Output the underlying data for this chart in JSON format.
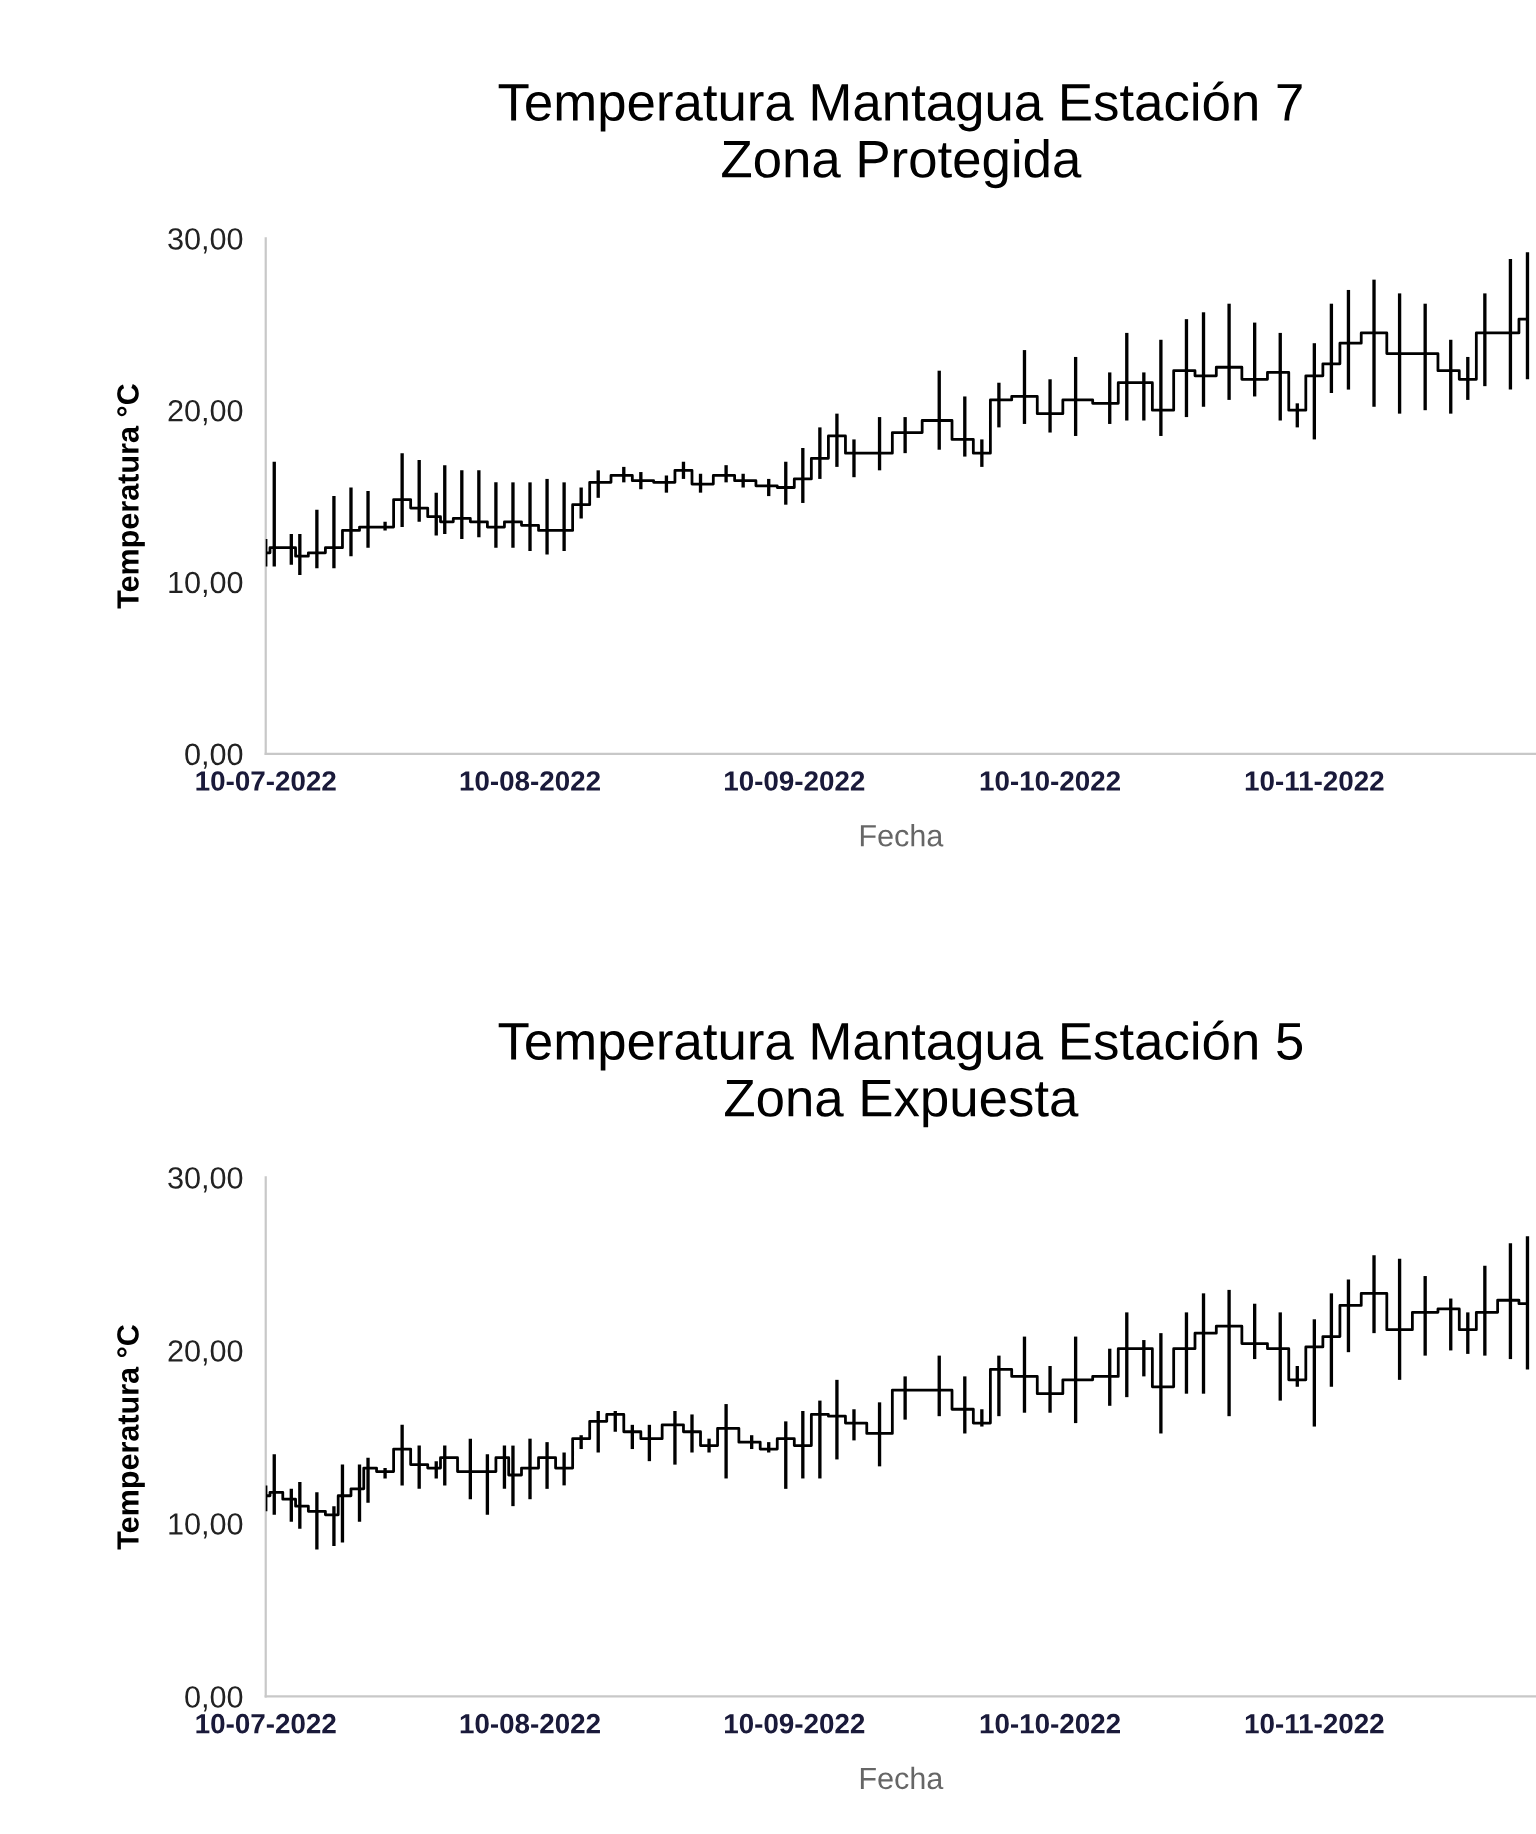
{
  "chart_data": [
    {
      "type": "step",
      "title": "Temperatura Mantagua Estación 7\nZona Protegida",
      "xlabel": "Fecha",
      "ylabel": "Temperatura °C",
      "color": "#000000",
      "x": [
        "2022-07-10",
        "2022-07-11",
        "2022-07-13",
        "2022-07-14",
        "2022-07-16",
        "2022-07-18",
        "2022-07-20",
        "2022-07-22",
        "2022-07-24",
        "2022-07-26",
        "2022-07-28",
        "2022-07-30",
        "2022-07-31",
        "2022-08-02",
        "2022-08-04",
        "2022-08-06",
        "2022-08-08",
        "2022-08-10",
        "2022-08-12",
        "2022-08-14",
        "2022-08-16",
        "2022-08-18",
        "2022-08-21",
        "2022-08-23",
        "2022-08-26",
        "2022-08-28",
        "2022-08-30",
        "2022-09-02",
        "2022-09-04",
        "2022-09-07",
        "2022-09-09",
        "2022-09-11",
        "2022-09-13",
        "2022-09-15",
        "2022-09-17",
        "2022-09-20",
        "2022-09-23",
        "2022-09-27",
        "2022-09-30",
        "2022-10-02",
        "2022-10-04",
        "2022-10-07",
        "2022-10-10",
        "2022-10-13",
        "2022-10-17",
        "2022-10-19",
        "2022-10-21",
        "2022-10-23",
        "2022-10-26",
        "2022-10-28",
        "2022-10-31",
        "2022-11-03",
        "2022-11-06",
        "2022-11-08",
        "2022-11-10",
        "2022-11-12",
        "2022-11-14",
        "2022-11-17",
        "2022-11-20",
        "2022-11-23",
        "2022-11-26",
        "2022-11-28",
        "2022-11-30",
        "2022-12-03",
        "2022-12-05"
      ],
      "values": [
        11.7,
        12,
        12,
        11.5,
        11.7,
        12,
        13,
        13.2,
        13.2,
        14.8,
        14.3,
        13.8,
        13.5,
        13.7,
        13.5,
        13.2,
        13.5,
        13.3,
        13,
        13,
        14.5,
        15.8,
        16.2,
        15.9,
        15.8,
        16.5,
        15.7,
        16.2,
        15.9,
        15.6,
        15.5,
        16,
        17.2,
        18.5,
        17.5,
        17.5,
        18.7,
        19.4,
        18.3,
        17.5,
        20.6,
        20.8,
        19.8,
        20.6,
        20.4,
        21.6,
        21.6,
        20,
        22.3,
        22,
        22.5,
        21.8,
        22.2,
        20,
        22,
        22.7,
        23.9,
        24.5,
        23.3,
        23.3,
        22.3,
        21.8,
        24.5,
        24.5,
        25.3
      ],
      "errors": [
        [
          10.9,
          12.5
        ],
        [
          10.9,
          17
        ],
        [
          11,
          12.8
        ],
        [
          10.4,
          12.8
        ],
        [
          10.8,
          14.2
        ],
        [
          10.8,
          15
        ],
        [
          11.5,
          15.5
        ],
        [
          12,
          15.3
        ],
        [
          13,
          13.5
        ],
        [
          13.2,
          17.5
        ],
        [
          13.5,
          17.1
        ],
        [
          12.7,
          15.2
        ],
        [
          12.8,
          16.8
        ],
        [
          12.5,
          16.5
        ],
        [
          12.6,
          16.5
        ],
        [
          12,
          15.8
        ],
        [
          12,
          15.8
        ],
        [
          11.8,
          15.8
        ],
        [
          11.6,
          16
        ],
        [
          11.8,
          15.8
        ],
        [
          13.7,
          15.5
        ],
        [
          14.9,
          16.5
        ],
        [
          15.8,
          16.7
        ],
        [
          15.4,
          16.4
        ],
        [
          15.2,
          16.2
        ],
        [
          16,
          17
        ],
        [
          15.2,
          16.3
        ],
        [
          15.8,
          16.8
        ],
        [
          15.5,
          16.3
        ],
        [
          15,
          16
        ],
        [
          14.5,
          17
        ],
        [
          14.6,
          17.8
        ],
        [
          16,
          19
        ],
        [
          16.7,
          19.8
        ],
        [
          16.1,
          18.3
        ],
        [
          16.5,
          19.6
        ],
        [
          17.5,
          19.6
        ],
        [
          17.7,
          22.3
        ],
        [
          17.3,
          20.8
        ],
        [
          16.7,
          18.3
        ],
        [
          19,
          21.6
        ],
        [
          19.2,
          23.5
        ],
        [
          18.7,
          21.8
        ],
        [
          18.5,
          23.1
        ],
        [
          19.2,
          22.2
        ],
        [
          19.4,
          24.5
        ],
        [
          19.4,
          22.2
        ],
        [
          18.5,
          24.1
        ],
        [
          19.6,
          25.3
        ],
        [
          20.2,
          25.7
        ],
        [
          20.6,
          26.2
        ],
        [
          20.8,
          25.1
        ],
        [
          19.4,
          24.5
        ],
        [
          19,
          20.4
        ],
        [
          18.3,
          23.9
        ],
        [
          21,
          26.2
        ],
        [
          21.2,
          27
        ],
        [
          20.2,
          27.6
        ],
        [
          19.8,
          26.8
        ],
        [
          20,
          26.2
        ],
        [
          19.8,
          24.1
        ],
        [
          20.6,
          23.1
        ],
        [
          21.4,
          26.8
        ],
        [
          21.2,
          28.8
        ],
        [
          21.8,
          29.2
        ]
      ],
      "xlim": [
        "2022-07-10",
        "2022-12-06"
      ],
      "xticks": [
        {
          "value": "2022-07-10",
          "label": "10-07-2022"
        },
        {
          "value": "2022-08-10",
          "label": "10-08-2022"
        },
        {
          "value": "2022-09-10",
          "label": "10-09-2022"
        },
        {
          "value": "2022-10-10",
          "label": "10-10-2022"
        },
        {
          "value": "2022-11-10",
          "label": "10-11-2022"
        }
      ],
      "ylim": [
        0,
        30
      ],
      "yticks": [
        {
          "value": 0,
          "label": "0,00"
        },
        {
          "value": 10,
          "label": "10,00"
        },
        {
          "value": 20,
          "label": "20,00"
        },
        {
          "value": 30,
          "label": "30,00"
        }
      ]
    },
    {
      "type": "step",
      "title": "Temperatura Mantagua Estación 5\nZona Expuesta",
      "xlabel": "Fecha",
      "ylabel": "Temperatura °C",
      "color": "#000000",
      "x": [
        "2022-07-10",
        "2022-07-11",
        "2022-07-13",
        "2022-07-14",
        "2022-07-16",
        "2022-07-18",
        "2022-07-19",
        "2022-07-21",
        "2022-07-22",
        "2022-07-24",
        "2022-07-26",
        "2022-07-28",
        "2022-07-30",
        "2022-07-31",
        "2022-08-03",
        "2022-08-05",
        "2022-08-07",
        "2022-08-08",
        "2022-08-10",
        "2022-08-12",
        "2022-08-14",
        "2022-08-16",
        "2022-08-18",
        "2022-08-20",
        "2022-08-22",
        "2022-08-24",
        "2022-08-27",
        "2022-08-29",
        "2022-08-31",
        "2022-09-02",
        "2022-09-05",
        "2022-09-07",
        "2022-09-09",
        "2022-09-11",
        "2022-09-13",
        "2022-09-15",
        "2022-09-17",
        "2022-09-20",
        "2022-09-23",
        "2022-09-27",
        "2022-09-30",
        "2022-10-02",
        "2022-10-04",
        "2022-10-07",
        "2022-10-10",
        "2022-10-13",
        "2022-10-17",
        "2022-10-19",
        "2022-10-21",
        "2022-10-23",
        "2022-10-26",
        "2022-10-28",
        "2022-10-31",
        "2022-11-03",
        "2022-11-06",
        "2022-11-08",
        "2022-11-10",
        "2022-11-12",
        "2022-11-14",
        "2022-11-17",
        "2022-11-20",
        "2022-11-23",
        "2022-11-26",
        "2022-11-28",
        "2022-11-30",
        "2022-12-03",
        "2022-12-05"
      ],
      "values": [
        11.6,
        11.8,
        11.4,
        11,
        10.7,
        10.5,
        11.6,
        12,
        13.2,
        13,
        14.3,
        13.4,
        13.2,
        13.8,
        13,
        13,
        13.8,
        12.8,
        13.2,
        13.8,
        13.2,
        14.9,
        15.9,
        16.3,
        15.3,
        14.9,
        15.7,
        15.3,
        14.5,
        15.5,
        14.7,
        14.3,
        14.9,
        14.5,
        16.3,
        16.2,
        15.8,
        15.2,
        17.7,
        17.7,
        16.6,
        15.8,
        18.9,
        18.5,
        17.5,
        18.3,
        18.5,
        20.1,
        20.1,
        17.9,
        20.1,
        21,
        21.4,
        20.4,
        20.1,
        18.3,
        20.2,
        20.8,
        22.6,
        23.3,
        21.2,
        22.2,
        22.4,
        21.2,
        22.2,
        22.9,
        22.7
      ],
      "errors": [
        [
          10.7,
          12.2
        ],
        [
          10.5,
          14
        ],
        [
          10.1,
          12
        ],
        [
          9.7,
          12.4
        ],
        [
          8.5,
          11.8
        ],
        [
          8.7,
          11
        ],
        [
          8.9,
          13.4
        ],
        [
          10.1,
          13.4
        ],
        [
          11.2,
          13.8
        ],
        [
          12.6,
          13.2
        ],
        [
          12.2,
          15.7
        ],
        [
          12,
          14.5
        ],
        [
          12.6,
          13.6
        ],
        [
          12.2,
          14.5
        ],
        [
          11.4,
          14.9
        ],
        [
          10.5,
          14
        ],
        [
          12,
          14.5
        ],
        [
          11,
          14.5
        ],
        [
          11.4,
          14.9
        ],
        [
          12,
          14.7
        ],
        [
          12.2,
          14.1
        ],
        [
          14.3,
          15.1
        ],
        [
          14.1,
          16.5
        ],
        [
          15.3,
          16.5
        ],
        [
          14.3,
          15.7
        ],
        [
          13.6,
          15.7
        ],
        [
          13.4,
          16.5
        ],
        [
          14.1,
          16.3
        ],
        [
          14.1,
          14.9
        ],
        [
          12.6,
          16.9
        ],
        [
          14.3,
          15.1
        ],
        [
          14.1,
          14.7
        ],
        [
          12,
          15.9
        ],
        [
          12.6,
          16.5
        ],
        [
          12.6,
          17.1
        ],
        [
          13.7,
          18.3
        ],
        [
          14.8,
          16.6
        ],
        [
          13.3,
          17
        ],
        [
          16,
          18.5
        ],
        [
          16.2,
          19.7
        ],
        [
          15.2,
          18.5
        ],
        [
          15.6,
          16.6
        ],
        [
          16.2,
          19.7
        ],
        [
          16.4,
          20.8
        ],
        [
          16.4,
          19.1
        ],
        [
          15.8,
          20.8
        ],
        [
          16.8,
          20.1
        ],
        [
          17.3,
          22.2
        ],
        [
          18.5,
          20.6
        ],
        [
          15.2,
          21
        ],
        [
          17.5,
          22.2
        ],
        [
          17.5,
          23.3
        ],
        [
          16.2,
          23.5
        ],
        [
          19.5,
          22.7
        ],
        [
          17.1,
          22.2
        ],
        [
          17.9,
          19.1
        ],
        [
          15.6,
          21.8
        ],
        [
          17.9,
          23.3
        ],
        [
          19.9,
          24.1
        ],
        [
          21,
          25.5
        ],
        [
          18.3,
          25.3
        ],
        [
          19.7,
          24.3
        ],
        [
          20,
          23
        ],
        [
          19.8,
          22.2
        ],
        [
          19.7,
          24.9
        ],
        [
          19.5,
          26.2
        ],
        [
          18.9,
          26.6
        ]
      ],
      "xlim": [
        "2022-07-10",
        "2022-12-06"
      ],
      "xticks": [
        {
          "value": "2022-07-10",
          "label": "10-07-2022"
        },
        {
          "value": "2022-08-10",
          "label": "10-08-2022"
        },
        {
          "value": "2022-09-10",
          "label": "10-09-2022"
        },
        {
          "value": "2022-10-10",
          "label": "10-10-2022"
        },
        {
          "value": "2022-11-10",
          "label": "10-11-2022"
        }
      ],
      "ylim": [
        0,
        30
      ],
      "yticks": [
        {
          "value": 0,
          "label": "0,00"
        },
        {
          "value": 10,
          "label": "10,00"
        },
        {
          "value": 20,
          "label": "20,00"
        },
        {
          "value": 30,
          "label": "30,00"
        }
      ]
    }
  ]
}
